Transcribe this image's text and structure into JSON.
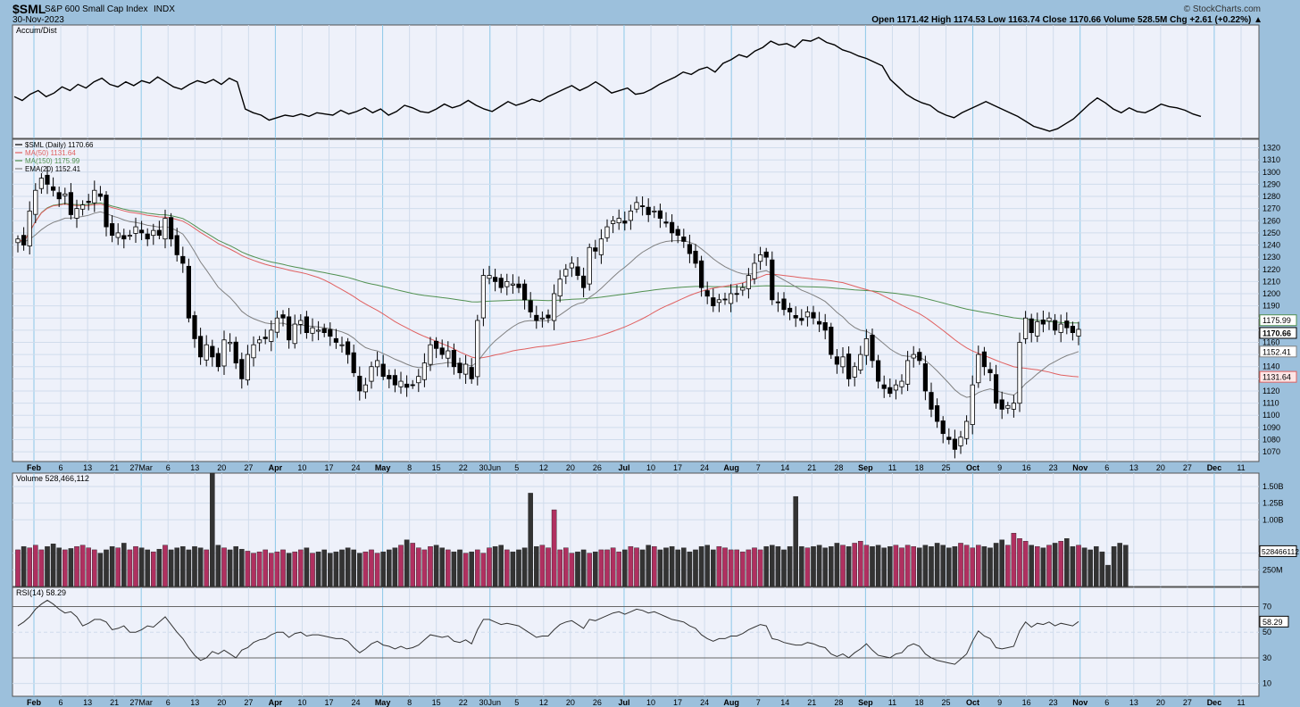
{
  "header": {
    "symbol": "$SML",
    "name": "S&P 600 Small Cap Index",
    "exchange": "INDX",
    "date": "30-Nov-2023",
    "brand": "© StockCharts.com",
    "ohlc_text": "Open 1171.42  High 1174.53  Low 1163.74  Close 1170.66  Volume 528.5M  Chg +2.61 (+0.22%) ▲"
  },
  "chart_data": [
    {
      "type": "line",
      "panel": "indicator",
      "legend": [
        "Accum/Dist"
      ],
      "series": [
        {
          "name": "Accum/Dist",
          "values": [
            50,
            47,
            52,
            55,
            50,
            53,
            58,
            55,
            60,
            57,
            62,
            65,
            60,
            58,
            62,
            59,
            63,
            61,
            66,
            62,
            58,
            56,
            60,
            63,
            61,
            64,
            60,
            65,
            62,
            40,
            37,
            35,
            31,
            33,
            35,
            34,
            36,
            34,
            37,
            36,
            35,
            39,
            36,
            38,
            41,
            37,
            40,
            35,
            38,
            43,
            41,
            38,
            37,
            40,
            44,
            41,
            43,
            47,
            43,
            40,
            38,
            42,
            46,
            43,
            45,
            48,
            46,
            50,
            53,
            56,
            59,
            55,
            58,
            62,
            58,
            53,
            55,
            57,
            52,
            53,
            56,
            60,
            63,
            66,
            70,
            68,
            72,
            74,
            70,
            77,
            80,
            84,
            82,
            87,
            90,
            95,
            92,
            93,
            90,
            96,
            95,
            98,
            94,
            92,
            88,
            86,
            83,
            81,
            78,
            75,
            64,
            58,
            52,
            48,
            45,
            43,
            38,
            35,
            33,
            37,
            40,
            43,
            46,
            43,
            40,
            37,
            34,
            30,
            26,
            24,
            22,
            24,
            28,
            32,
            38,
            44,
            49,
            45,
            40,
            37,
            41,
            38,
            37,
            40,
            44,
            42,
            41,
            39,
            36,
            34
          ]
        }
      ],
      "show_y_axis": false
    },
    {
      "type": "candlestick",
      "panel": "price",
      "legend": [
        "$SML (Daily) 1170.66",
        "MA(50) 1131.64",
        "MA(150) 1175.99",
        "EMA(20) 1152.41"
      ],
      "yticks": [
        1070,
        1080,
        1090,
        1100,
        1110,
        1120,
        1130,
        1140,
        1150,
        1160,
        1170,
        1180,
        1190,
        1200,
        1210,
        1220,
        1230,
        1240,
        1250,
        1260,
        1270,
        1280,
        1290,
        1300,
        1310,
        1320
      ],
      "ylim": [
        1062,
        1327
      ],
      "last_value_tags": [
        "1175.99",
        "1170.66",
        "1152.41",
        "1131.64"
      ],
      "closes": [
        1245,
        1240,
        1268,
        1285,
        1295,
        1290,
        1285,
        1278,
        1282,
        1265,
        1270,
        1273,
        1275,
        1285,
        1280,
        1255,
        1248,
        1250,
        1245,
        1248,
        1255,
        1250,
        1245,
        1252,
        1248,
        1262,
        1245,
        1232,
        1225,
        1180,
        1163,
        1148,
        1158,
        1148,
        1140,
        1162,
        1160,
        1143,
        1130,
        1150,
        1158,
        1162,
        1163,
        1170,
        1180,
        1180,
        1162,
        1175,
        1178,
        1168,
        1172,
        1170,
        1168,
        1165,
        1160,
        1158,
        1150,
        1135,
        1120,
        1125,
        1140,
        1145,
        1132,
        1130,
        1125,
        1128,
        1123,
        1125,
        1132,
        1143,
        1158,
        1155,
        1150,
        1153,
        1140,
        1135,
        1142,
        1130,
        1178,
        1215,
        1215,
        1210,
        1205,
        1210,
        1208,
        1205,
        1195,
        1185,
        1178,
        1180,
        1180,
        1200,
        1212,
        1220,
        1225,
        1215,
        1205,
        1238,
        1235,
        1245,
        1255,
        1260,
        1262,
        1258,
        1268,
        1275,
        1272,
        1265,
        1268,
        1262,
        1258,
        1250,
        1248,
        1243,
        1233,
        1225,
        1205,
        1198,
        1190,
        1195,
        1195,
        1200,
        1200,
        1205,
        1215,
        1225,
        1232,
        1230,
        1195,
        1193,
        1187,
        1185,
        1180,
        1178,
        1185,
        1180,
        1175,
        1170,
        1150,
        1142,
        1148,
        1130,
        1140,
        1150,
        1163,
        1145,
        1128,
        1122,
        1118,
        1125,
        1128,
        1145,
        1150,
        1145,
        1120,
        1105,
        1095,
        1085,
        1080,
        1072,
        1082,
        1095,
        1125,
        1150,
        1140,
        1135,
        1110,
        1105,
        1108,
        1110,
        1160,
        1180,
        1168,
        1177,
        1175,
        1180,
        1170,
        1175,
        1172,
        1168,
        1170.66
      ],
      "ma_final": {
        "MA(50)": 1131.64,
        "MA(150)": 1175.99,
        "EMA(20)": 1152.41
      }
    },
    {
      "type": "bar",
      "panel": "volume",
      "legend": [
        "Volume 528,466,112"
      ],
      "yticks": [
        "250M",
        "500M",
        "1.00B",
        "1.25B",
        "1.50B"
      ],
      "ylim": [
        0,
        1.7
      ],
      "last_value_tag": "528466112",
      "volumes_b": [
        0.55,
        0.6,
        0.58,
        0.62,
        0.55,
        0.6,
        0.64,
        0.58,
        0.55,
        0.57,
        0.6,
        0.62,
        0.58,
        0.55,
        0.5,
        0.55,
        0.6,
        0.58,
        0.65,
        0.55,
        0.6,
        0.58,
        0.55,
        0.52,
        0.56,
        0.62,
        0.55,
        0.58,
        0.6,
        0.55,
        0.6,
        0.58,
        0.55,
        1.85,
        0.62,
        0.58,
        0.55,
        0.6,
        0.56,
        0.53,
        0.5,
        0.52,
        0.55,
        0.5,
        0.52,
        0.55,
        0.5,
        0.52,
        0.55,
        0.58,
        0.5,
        0.52,
        0.55,
        0.5,
        0.52,
        0.55,
        0.58,
        0.55,
        0.5,
        0.52,
        0.55,
        0.5,
        0.52,
        0.55,
        0.58,
        0.62,
        0.7,
        0.65,
        0.58,
        0.55,
        0.6,
        0.62,
        0.58,
        0.55,
        0.52,
        0.55,
        0.5,
        0.52,
        0.55,
        0.5,
        0.58,
        0.6,
        0.62,
        0.55,
        0.52,
        0.55,
        0.58,
        1.4,
        0.6,
        0.62,
        0.58,
        1.15,
        0.55,
        0.58,
        0.5,
        0.52,
        0.55,
        0.5,
        0.52,
        0.55,
        0.55,
        0.58,
        0.52,
        0.55,
        0.6,
        0.58,
        0.55,
        0.62,
        0.6,
        0.55,
        0.58,
        0.6,
        0.55,
        0.58,
        0.52,
        0.55,
        0.6,
        0.62,
        0.55,
        0.6,
        0.58,
        0.55,
        0.55,
        0.52,
        0.55,
        0.58,
        0.55,
        0.6,
        0.62,
        0.6,
        0.55,
        0.6,
        1.35,
        0.6,
        0.58,
        0.6,
        0.62,
        0.58,
        0.6,
        0.65,
        0.62,
        0.6,
        0.65,
        0.68,
        0.62,
        0.6,
        0.62,
        0.58,
        0.6,
        0.62,
        0.58,
        0.62,
        0.6,
        0.58,
        0.62,
        0.6,
        0.65,
        0.62,
        0.58,
        0.6,
        0.65,
        0.62,
        0.58,
        0.62,
        0.6,
        0.58,
        0.65,
        0.7,
        0.62,
        0.8,
        0.72,
        0.68,
        0.62,
        0.6,
        0.58,
        0.62,
        0.65,
        0.68,
        0.72,
        0.6,
        0.62,
        0.58,
        0.55,
        0.6,
        0.52,
        0.32,
        0.6,
        0.65,
        0.62
      ]
    },
    {
      "type": "line",
      "panel": "indicator",
      "legend": [
        "RSI(14) 58.29"
      ],
      "yticks": [
        10,
        30,
        50,
        70
      ],
      "ylim": [
        0,
        85
      ],
      "last_value_tag": "58.29",
      "overbought": 70,
      "oversold": 30,
      "values": [
        55,
        58,
        62,
        68,
        72,
        75,
        72,
        68,
        65,
        66,
        62,
        55,
        57,
        60,
        60,
        58,
        52,
        53,
        55,
        50,
        50,
        52,
        55,
        54,
        58,
        62,
        56,
        50,
        45,
        38,
        32,
        28,
        30,
        35,
        33,
        36,
        33,
        30,
        36,
        38,
        42,
        44,
        45,
        48,
        50,
        50,
        46,
        49,
        50,
        47,
        48,
        48,
        47,
        46,
        45,
        45,
        43,
        38,
        34,
        37,
        41,
        43,
        40,
        39,
        37,
        39,
        37,
        38,
        40,
        44,
        48,
        47,
        46,
        47,
        43,
        42,
        44,
        41,
        52,
        60,
        60,
        58,
        56,
        57,
        56,
        55,
        52,
        49,
        46,
        47,
        47,
        52,
        56,
        58,
        59,
        56,
        53,
        60,
        59,
        61,
        63,
        65,
        66,
        64,
        66,
        68,
        67,
        65,
        66,
        64,
        62,
        60,
        59,
        58,
        55,
        53,
        48,
        45,
        43,
        45,
        45,
        47,
        47,
        49,
        52,
        54,
        56,
        55,
        45,
        44,
        42,
        41,
        40,
        40,
        42,
        41,
        39,
        38,
        33,
        31,
        33,
        30,
        34,
        37,
        41,
        36,
        32,
        31,
        30,
        33,
        34,
        39,
        41,
        39,
        33,
        30,
        28,
        27,
        26,
        25,
        29,
        33,
        43,
        51,
        47,
        45,
        38,
        37,
        38,
        39,
        51,
        58,
        54,
        57,
        56,
        58,
        55,
        57,
        56,
        55,
        58.29
      ]
    }
  ],
  "x_axis_labels": [
    "Feb",
    "6",
    "13",
    "21",
    "27Mar",
    "6",
    "13",
    "20",
    "27",
    "Apr",
    "10",
    "17",
    "24",
    "May",
    "8",
    "15",
    "22",
    "30Jun",
    "5",
    "12",
    "20",
    "26",
    "Jul",
    "10",
    "17",
    "24",
    "Aug",
    "7",
    "14",
    "21",
    "28",
    "Sep",
    "11",
    "18",
    "25",
    "Oct",
    "9",
    "16",
    "23",
    "Nov",
    "6",
    "13",
    "20",
    "27",
    "Dec",
    "11"
  ],
  "x_axis_month_labels": [
    "Feb",
    "Apr",
    "May",
    "Jul",
    "Aug",
    "Sep",
    "Oct",
    "Nov",
    "Dec"
  ],
  "colors": {
    "plot_bg": "#eef1fa",
    "frame_bg": "#9cc0dc",
    "up_volume": "#b03060",
    "down_volume": "#333333",
    "ma50": "#e06060",
    "ma150": "#509050",
    "ema20": "#808080",
    "candle_up_fill": "#ffffff",
    "candle_down_fill": "#000000"
  }
}
